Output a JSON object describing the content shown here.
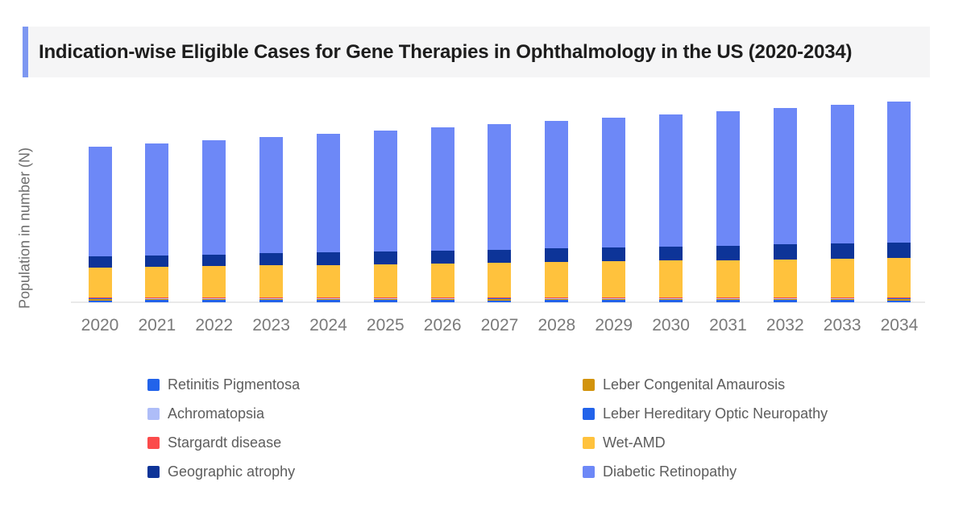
{
  "title": "Indication-wise Eligible Cases for Gene Therapies in Ophthalmology in the US (2020-2034)",
  "y_axis_label": "Population in number (N)",
  "colors": {
    "title_accent": "#7d97f1",
    "title_background": "#f5f5f6",
    "axis_line": "#e9e9e9",
    "tick_text": "#7a7a7a",
    "legend_text": "#5d5d5d"
  },
  "chart_data": {
    "type": "bar",
    "stacked": true,
    "title": "Indication-wise Eligible Cases for Gene Therapies in Ophthalmology in the US (2020-2034)",
    "xlabel": "",
    "ylabel": "Population in number (N)",
    "categories": [
      "2020",
      "2021",
      "2022",
      "2023",
      "2024",
      "2025",
      "2026",
      "2027",
      "2028",
      "2029",
      "2030",
      "2031",
      "2032",
      "2033",
      "2034"
    ],
    "units": "relative units (y-axis has no numeric tick labels; values estimated from bar heights)",
    "legend_position": "bottom",
    "grid": false,
    "stack_order_bottom_to_top": [
      "Retinitis Pigmentosa",
      "Leber Congenital Amaurosis",
      "Achromatopsia",
      "Leber Hereditary Optic Neuropathy",
      "Stargardt disease",
      "Wet-AMD",
      "Geographic atrophy",
      "Diabetic Retinopathy"
    ],
    "series": [
      {
        "name": "Retinitis Pigmentosa",
        "color": "#2263ea",
        "values": [
          2.5,
          2.5,
          2.5,
          2.5,
          2.5,
          2.5,
          2.5,
          2.5,
          2.5,
          2.5,
          2.5,
          2.5,
          2.5,
          2.5,
          2.5
        ]
      },
      {
        "name": "Leber Congenital Amaurosis",
        "color": "#d2930b",
        "values": [
          1.5,
          1.5,
          1.5,
          1.5,
          1.5,
          1.5,
          1.5,
          1.5,
          1.5,
          1.5,
          1.5,
          1.5,
          1.5,
          1.5,
          1.5
        ]
      },
      {
        "name": "Achromatopsia",
        "color": "#aebdf8",
        "values": [
          0.5,
          0.5,
          0.5,
          0.5,
          0.5,
          0.5,
          0.5,
          0.5,
          0.5,
          0.5,
          0.5,
          0.5,
          0.5,
          0.5,
          0.5
        ]
      },
      {
        "name": "Leber Hereditary Optic Neuropathy",
        "color": "#2263ea",
        "values": [
          0.5,
          0.5,
          0.5,
          0.5,
          0.5,
          0.5,
          0.5,
          0.5,
          0.5,
          0.5,
          0.5,
          0.5,
          0.5,
          0.5,
          0.5
        ]
      },
      {
        "name": "Stargardt disease",
        "color": "#fb4b4b",
        "values": [
          1,
          1,
          1,
          1,
          1,
          1,
          1,
          1,
          1,
          1,
          1,
          1,
          1,
          1,
          1
        ]
      },
      {
        "name": "Wet-AMD",
        "color": "#ffc23d",
        "values": [
          37,
          37.9,
          38.7,
          39.6,
          40.4,
          41.3,
          42.1,
          43,
          43.9,
          44.7,
          45.6,
          46.4,
          47.3,
          48.1,
          49
        ]
      },
      {
        "name": "Geographic atrophy",
        "color": "#0d3498",
        "values": [
          14,
          14.4,
          14.7,
          15.1,
          15.4,
          15.8,
          16.1,
          16.5,
          16.9,
          17.2,
          17.6,
          17.9,
          18.3,
          18.6,
          19
        ]
      },
      {
        "name": "Diabetic Retinopathy",
        "color": "#6d88f7",
        "values": [
          136,
          138.7,
          141.6,
          144.3,
          147.2,
          149.9,
          152.8,
          155.5,
          158.2,
          161.1,
          163.8,
          166.7,
          169.4,
          172.3,
          175
        ]
      }
    ]
  },
  "legend": {
    "columns": [
      {
        "items": [
          {
            "label": "Retinitis Pigmentosa",
            "color": "#2263ea"
          },
          {
            "label": "Achromatopsia",
            "color": "#aebdf8"
          },
          {
            "label": "Stargardt disease",
            "color": "#fb4b4b"
          },
          {
            "label": "Geographic atrophy",
            "color": "#0d3498"
          }
        ]
      },
      {
        "items": [
          {
            "label": "Leber Congenital Amaurosis",
            "color": "#d2930b"
          },
          {
            "label": "Leber Hereditary Optic Neuropathy",
            "color": "#2263ea"
          },
          {
            "label": "Wet-AMD",
            "color": "#ffc23d"
          },
          {
            "label": "Diabetic Retinopathy",
            "color": "#6d88f7"
          }
        ]
      }
    ]
  }
}
